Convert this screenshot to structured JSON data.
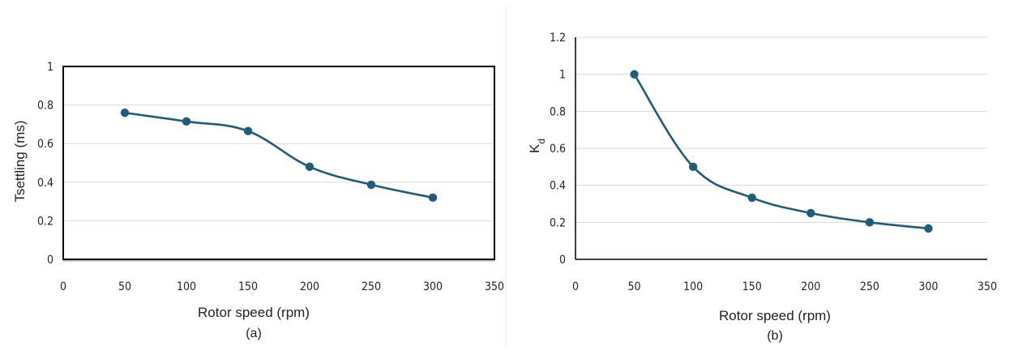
{
  "chart_data": [
    {
      "type": "line",
      "x": [
        50,
        100,
        150,
        200,
        250,
        300
      ],
      "series": [
        {
          "values": [
            0.76,
            0.715,
            0.665,
            0.48,
            0.387,
            0.32
          ],
          "color": "#1f5c7a"
        }
      ],
      "xlabel": "Rotor speed (rpm)",
      "ylabel": "Tsettling (ms)",
      "caption": "(a)",
      "xlim": [
        0,
        350
      ],
      "ylim": [
        0,
        1
      ],
      "xticks": [
        0,
        50,
        100,
        150,
        200,
        250,
        300,
        350
      ],
      "yticks": [
        0,
        0.2,
        0.4,
        0.6,
        0.8,
        1
      ],
      "xtick_labels": [
        "0",
        "50",
        "100",
        "150",
        "200",
        "250",
        "300",
        "350"
      ],
      "ytick_labels": [
        "0",
        "0.2",
        "0.4",
        "0.6",
        "0.8",
        "1"
      ],
      "grid": true,
      "smooth": true,
      "markers": true,
      "frame": true
    },
    {
      "type": "line",
      "x": [
        50,
        100,
        150,
        200,
        250,
        300
      ],
      "series": [
        {
          "values": [
            1.0,
            0.5,
            0.333,
            0.25,
            0.2,
            0.167
          ],
          "color": "#1f5c7a"
        }
      ],
      "xlabel": "Rotor speed (rpm)",
      "ylabel": "K",
      "ylabel_sub": "d",
      "caption": "(b)",
      "xlim": [
        0,
        350
      ],
      "ylim": [
        0,
        1.2
      ],
      "xticks": [
        0,
        50,
        100,
        150,
        200,
        250,
        300,
        350
      ],
      "yticks": [
        0,
        0.2,
        0.4,
        0.6,
        0.8,
        1,
        1.2
      ],
      "xtick_labels": [
        "0",
        "50",
        "100",
        "150",
        "200",
        "250",
        "300",
        "350"
      ],
      "ytick_labels": [
        "0",
        "0.2",
        "0.4",
        "0.6",
        "0.8",
        "1",
        "1.2"
      ],
      "grid": true,
      "smooth": true,
      "markers": true,
      "frame": false
    }
  ]
}
